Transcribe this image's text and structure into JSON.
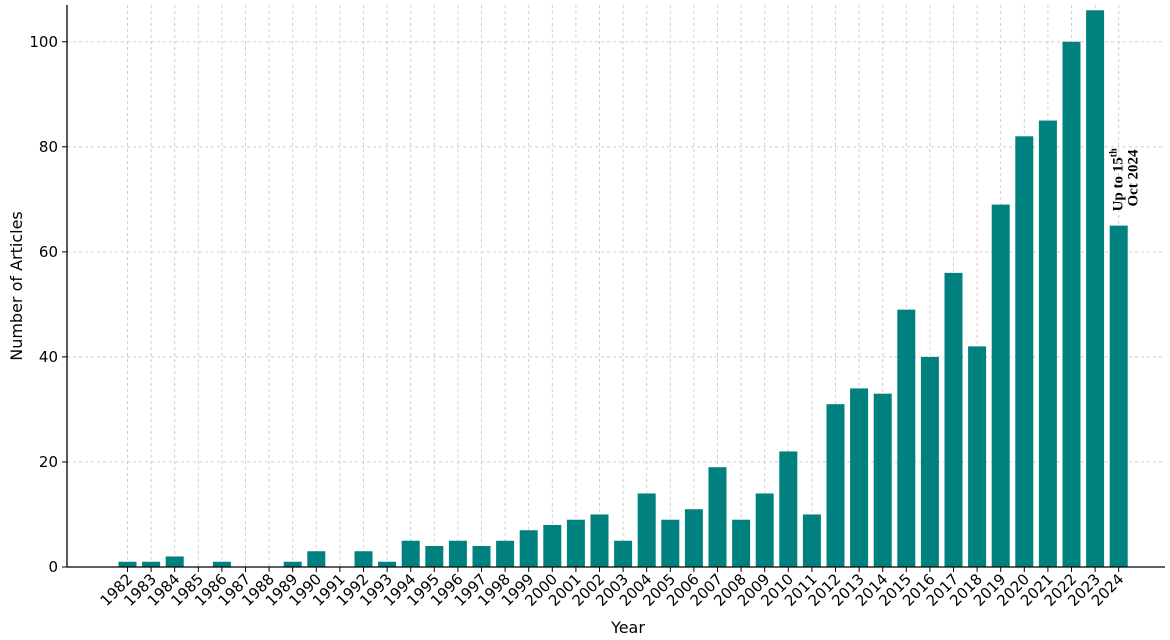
{
  "chart_data": {
    "type": "bar",
    "title": "",
    "xlabel": "Year",
    "ylabel": "Number of Articles",
    "ylim": [
      0,
      107
    ],
    "yticks": [
      0,
      20,
      40,
      60,
      80,
      100
    ],
    "grid": true,
    "bar_color": "#00807f",
    "categories": [
      "1982",
      "1983",
      "1984",
      "1985",
      "1986",
      "1987",
      "1988",
      "1989",
      "1990",
      "1991",
      "1992",
      "1993",
      "1994",
      "1995",
      "1996",
      "1997",
      "1998",
      "1999",
      "2000",
      "2001",
      "2002",
      "2003",
      "2004",
      "2005",
      "2006",
      "2007",
      "2008",
      "2009",
      "2010",
      "2011",
      "2012",
      "2013",
      "2014",
      "2015",
      "2016",
      "2017",
      "2018",
      "2019",
      "2020",
      "2021",
      "2022",
      "2023",
      "2024"
    ],
    "values": [
      1,
      1,
      2,
      0,
      1,
      0,
      0,
      1,
      3,
      0,
      3,
      1,
      5,
      4,
      5,
      4,
      5,
      7,
      8,
      9,
      10,
      5,
      14,
      9,
      11,
      19,
      9,
      14,
      22,
      10,
      31,
      34,
      33,
      49,
      40,
      56,
      42,
      69,
      82,
      85,
      100,
      106,
      65
    ],
    "annotation": {
      "category": "2024",
      "line1": "Up to 15",
      "line1_sup": "th",
      "line2": "Oct 2024"
    }
  }
}
